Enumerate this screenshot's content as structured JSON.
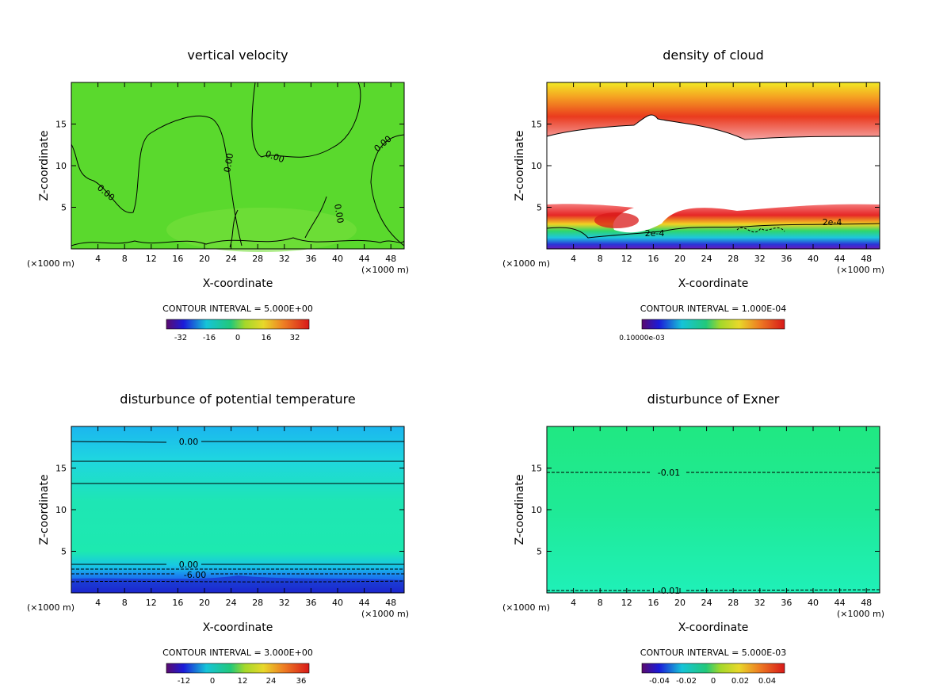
{
  "chart_data": [
    {
      "type": "heatmap",
      "title": "vertical velocity",
      "xlabel": "X-coordinate",
      "ylabel": "Z-coordinate",
      "x_unit_left": "(×1000 m)",
      "x_unit_right": "(×1000 m)",
      "xlim": [
        0,
        50
      ],
      "ylim": [
        0,
        20
      ],
      "x_ticks": [
        4,
        8,
        12,
        16,
        20,
        24,
        28,
        32,
        36,
        40,
        44,
        48
      ],
      "y_ticks": [
        5,
        10,
        15
      ],
      "contour_interval": "CONTOUR INTERVAL = 5.000E+00",
      "colorbar_labels": [
        "-32",
        "-16",
        "0",
        "16",
        "32"
      ],
      "contour_labels": [
        "0.00",
        "0.00",
        "0.00",
        "0.00",
        "0.00"
      ]
    },
    {
      "type": "heatmap",
      "title": "density of cloud",
      "xlabel": "X-coordinate",
      "ylabel": "Z-coordinate",
      "x_unit_left": "(×1000 m)",
      "x_unit_right": "(×1000 m)",
      "xlim": [
        0,
        50
      ],
      "ylim": [
        0,
        20
      ],
      "x_ticks": [
        4,
        8,
        12,
        16,
        20,
        24,
        28,
        32,
        36,
        40,
        44,
        48
      ],
      "y_ticks": [
        5,
        10,
        15
      ],
      "contour_interval": "CONTOUR INTERVAL = 1.000E-04",
      "colorbar_labels": [
        "0.10000e-03"
      ],
      "contour_labels": [
        "2e-4",
        "2e-4"
      ]
    },
    {
      "type": "heatmap",
      "title": "disturbunce of potential temperature",
      "xlabel": "X-coordinate",
      "ylabel": "Z-coordinate",
      "x_unit_left": "(×1000 m)",
      "x_unit_right": "(×1000 m)",
      "xlim": [
        0,
        50
      ],
      "ylim": [
        0,
        20
      ],
      "x_ticks": [
        4,
        8,
        12,
        16,
        20,
        24,
        28,
        32,
        36,
        40,
        44,
        48
      ],
      "y_ticks": [
        5,
        10,
        15
      ],
      "contour_interval": "CONTOUR INTERVAL = 3.000E+00",
      "colorbar_labels": [
        "-12",
        "0",
        "12",
        "24",
        "36"
      ],
      "contour_labels": [
        "0.00",
        "0.00",
        "-6.00"
      ]
    },
    {
      "type": "heatmap",
      "title": "disturbunce of Exner",
      "xlabel": "X-coordinate",
      "ylabel": "Z-coordinate",
      "x_unit_left": "(×1000 m)",
      "x_unit_right": "(×1000 m)",
      "xlim": [
        0,
        50
      ],
      "ylim": [
        0,
        20
      ],
      "x_ticks": [
        4,
        8,
        12,
        16,
        20,
        24,
        28,
        32,
        36,
        40,
        44,
        48
      ],
      "y_ticks": [
        5,
        10,
        15
      ],
      "contour_interval": "CONTOUR INTERVAL = 5.000E-03",
      "colorbar_labels": [
        "-0.04",
        "-0.02",
        "0",
        "0.02",
        "0.04"
      ],
      "contour_labels": [
        "-0.01",
        "-0.01"
      ]
    }
  ]
}
